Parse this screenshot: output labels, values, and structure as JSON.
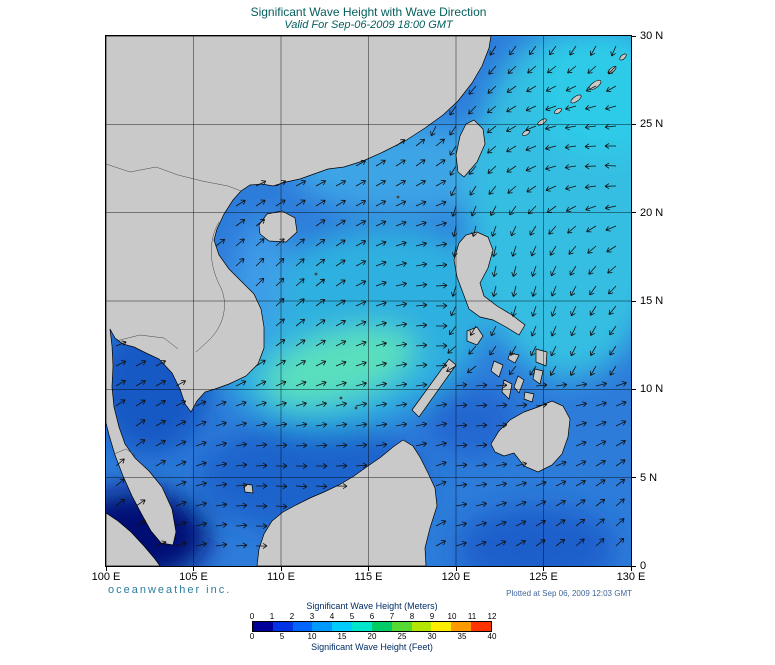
{
  "header": {
    "title": "Significant Wave Height with Wave Direction",
    "subtitle": "Valid For Sep-06-2009 18:00 GMT"
  },
  "map": {
    "x_ticks": [
      "100 E",
      "105 E",
      "110 E",
      "115 E",
      "120 E",
      "125 E",
      "130 E"
    ],
    "y_ticks": [
      "30 N",
      "25 N",
      "20 N",
      "15 N",
      "10 N",
      "5 N",
      "0"
    ]
  },
  "footer": {
    "brand": "oceanweather inc.",
    "plotted": "Plotted at Sep 06, 2009 12:03 GMT"
  },
  "legend": {
    "meters_label": "Significant Wave Height (Meters)",
    "feet_label": "Significant Wave Height (Feet)",
    "meters_ticks": [
      "0",
      "1",
      "2",
      "3",
      "4",
      "5",
      "6",
      "7",
      "8",
      "9",
      "10",
      "11",
      "12"
    ],
    "feet_ticks": [
      "0",
      "5",
      "10",
      "15",
      "20",
      "25",
      "30",
      "35",
      "40"
    ],
    "colors": [
      "#000099",
      "#0033e6",
      "#0066ff",
      "#0099ff",
      "#00ccff",
      "#00e6cc",
      "#00cc66",
      "#55d933",
      "#b3e600",
      "#ffee00",
      "#ff9900",
      "#ff3300"
    ]
  },
  "chart_data": {
    "type": "heatmap",
    "title": "Significant Wave Height with Wave Direction",
    "valid_time": "Sep-06-2009 18:00 GMT",
    "region": {
      "lon_min": "100 E",
      "lon_max": "130 E",
      "lat_min": "0",
      "lat_max": "30 N"
    },
    "scale_meters": [
      0,
      1,
      2,
      3,
      4,
      5,
      6,
      7,
      8,
      9,
      10,
      11,
      12
    ],
    "scale_feet": [
      0,
      5,
      10,
      15,
      20,
      25,
      30,
      35,
      40
    ],
    "legend_position": "bottom",
    "grid": true
  }
}
